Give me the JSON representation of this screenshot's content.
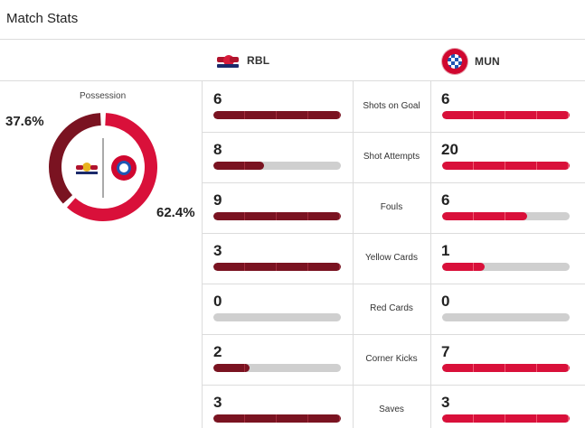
{
  "page": {
    "title": "Match Stats"
  },
  "teams": {
    "home": {
      "abbr": "RBL",
      "logo_icon": "rb-leipzig-logo-icon",
      "color": "#7a1321"
    },
    "away": {
      "abbr": "MUN",
      "logo_icon": "bayern-munich-logo-icon",
      "color": "#d9103a"
    }
  },
  "possession": {
    "label": "Possession",
    "home_pct_label": "37.6%",
    "away_pct_label": "62.4%",
    "home_value": 37.6,
    "away_value": 62.4
  },
  "stats": [
    {
      "label": "Shots on Goal",
      "home": "6",
      "away": "6",
      "home_fill": 1.0,
      "away_fill": 1.0
    },
    {
      "label": "Shot Attempts",
      "home": "8",
      "away": "20",
      "home_fill": 0.4,
      "away_fill": 1.0
    },
    {
      "label": "Fouls",
      "home": "9",
      "away": "6",
      "home_fill": 1.0,
      "away_fill": 0.667
    },
    {
      "label": "Yellow Cards",
      "home": "3",
      "away": "1",
      "home_fill": 1.0,
      "away_fill": 0.333
    },
    {
      "label": "Red Cards",
      "home": "0",
      "away": "0",
      "home_fill": 0,
      "away_fill": 0
    },
    {
      "label": "Corner Kicks",
      "home": "2",
      "away": "7",
      "home_fill": 0.286,
      "away_fill": 1.0
    },
    {
      "label": "Saves",
      "home": "3",
      "away": "3",
      "home_fill": 1.0,
      "away_fill": 1.0
    }
  ]
}
